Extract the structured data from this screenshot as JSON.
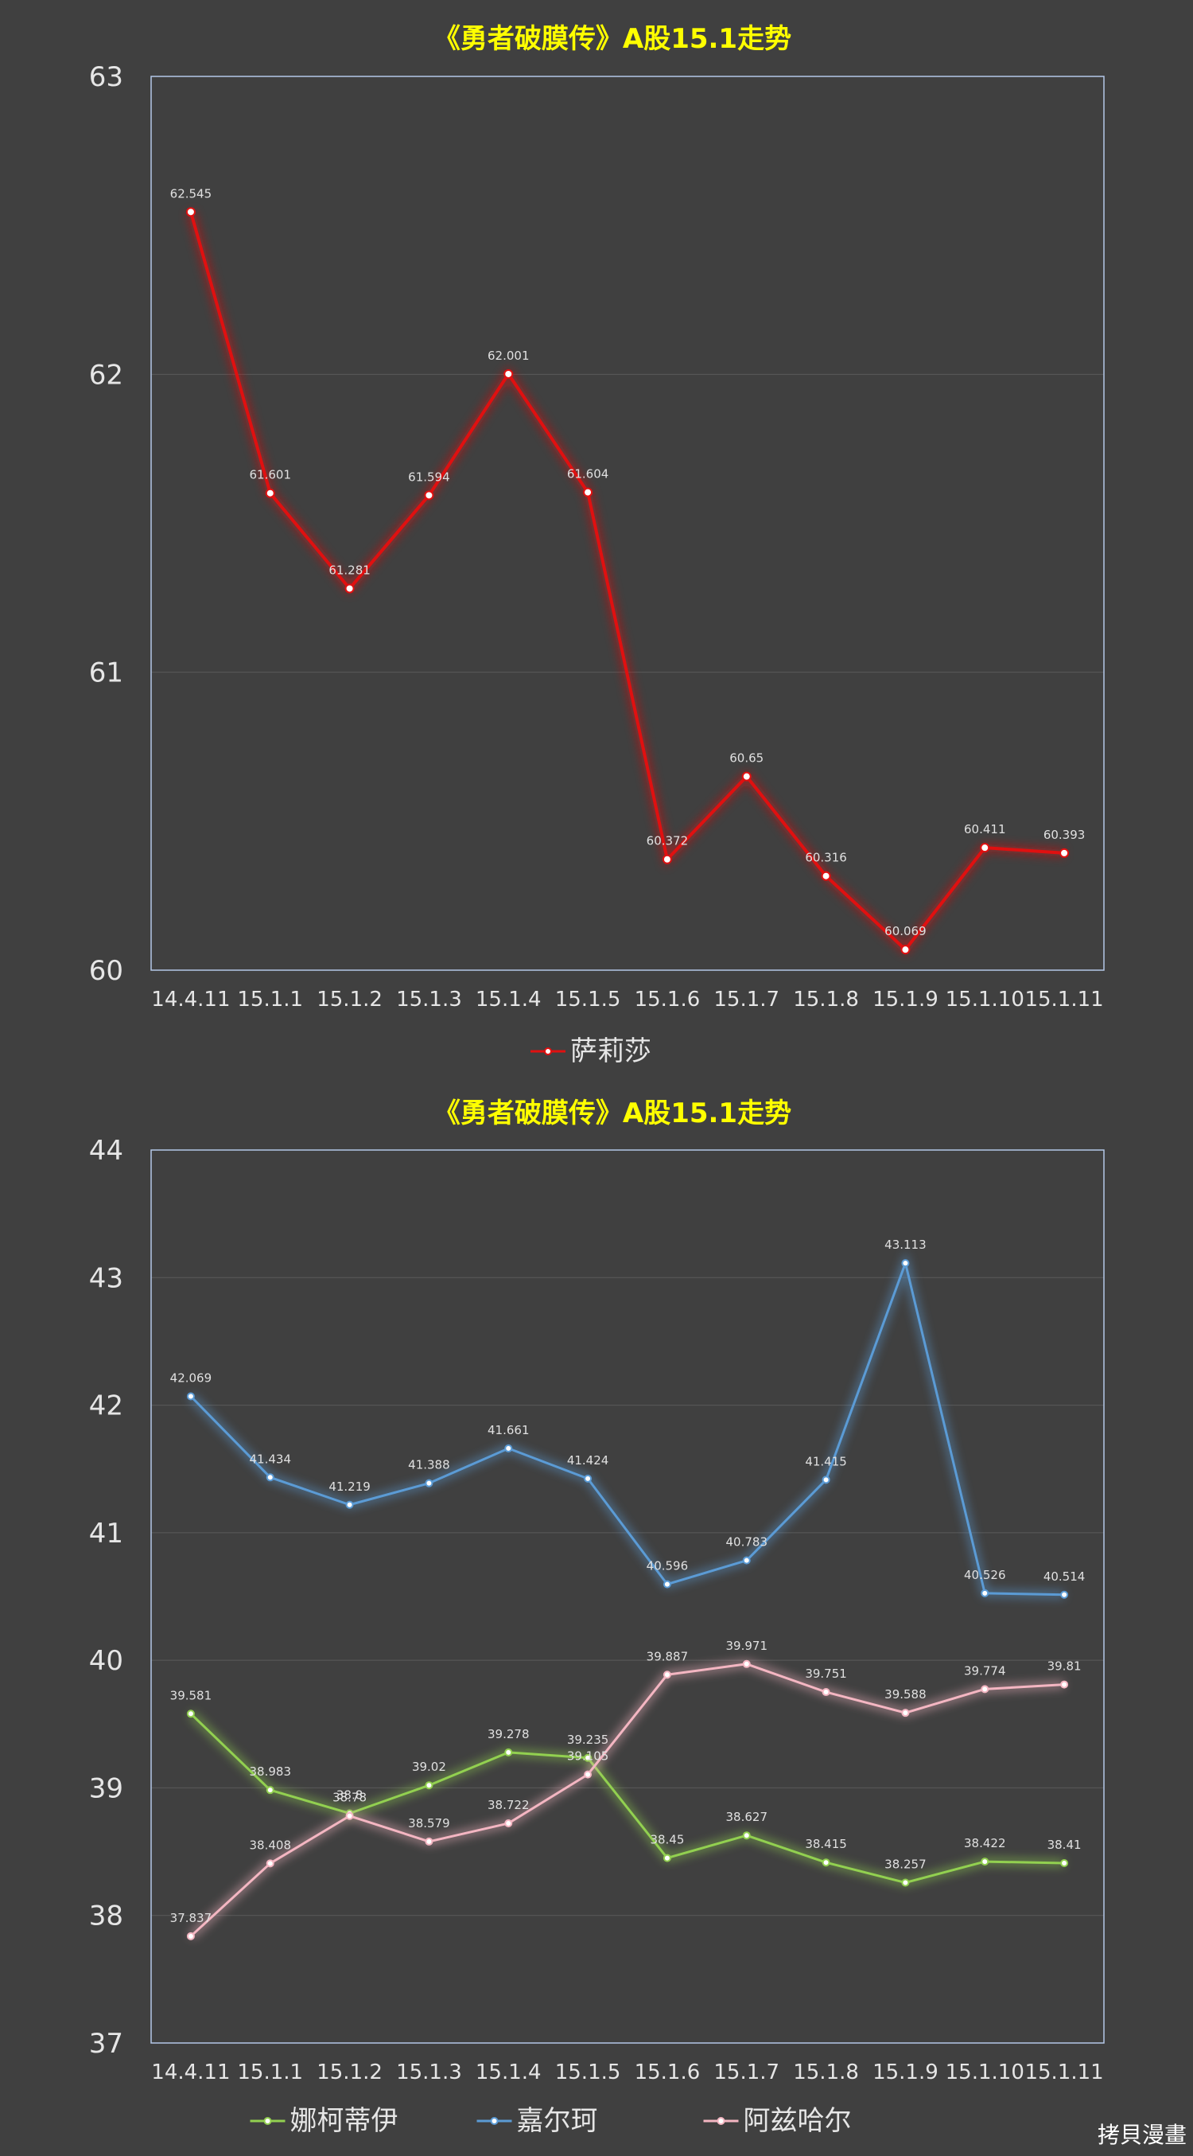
{
  "chart_data": [
    {
      "type": "line",
      "title": "《勇者破膜传》A股15.1走势",
      "categories": [
        "14.4.11",
        "15.1.1",
        "15.1.2",
        "15.1.3",
        "15.1.4",
        "15.1.5",
        "15.1.6",
        "15.1.7",
        "15.1.8",
        "15.1.9",
        "15.1.10",
        "15.1.11"
      ],
      "ylim": [
        60,
        63
      ],
      "yticks": [
        "60",
        "61",
        "62",
        "63"
      ],
      "grid": true,
      "legend": "bottom",
      "series": [
        {
          "name": "萨莉莎",
          "color": "#e01010",
          "values": [
            62.545,
            61.601,
            61.281,
            61.594,
            62.001,
            61.604,
            60.372,
            60.65,
            60.316,
            60.069,
            60.411,
            60.393
          ],
          "labels": [
            "62.545",
            "61.601",
            "61.281",
            "61.594",
            "62.001",
            "61.604",
            "60.372",
            "60.65",
            "60.316",
            "60.069",
            "60.411",
            "60.393"
          ]
        }
      ]
    },
    {
      "type": "line",
      "title": "《勇者破膜传》A股15.1走势",
      "categories": [
        "14.4.11",
        "15.1.1",
        "15.1.2",
        "15.1.3",
        "15.1.4",
        "15.1.5",
        "15.1.6",
        "15.1.7",
        "15.1.8",
        "15.1.9",
        "15.1.10",
        "15.1.11"
      ],
      "ylim": [
        37,
        44
      ],
      "yticks": [
        "37",
        "38",
        "39",
        "40",
        "41",
        "42",
        "43",
        "44"
      ],
      "grid": true,
      "legend": "bottom",
      "series": [
        {
          "name": "娜柯蒂伊",
          "color": "#92d050",
          "values": [
            39.581,
            38.983,
            38.8,
            39.02,
            39.278,
            39.235,
            38.45,
            38.627,
            38.415,
            38.257,
            38.422,
            38.41
          ],
          "labels": [
            "39.581",
            "38.983",
            "38.8",
            "39.02",
            "39.278",
            "39.235",
            "38.45",
            "38.627",
            "38.415",
            "38.257",
            "38.422",
            "38.41"
          ]
        },
        {
          "name": "嘉尔珂",
          "color": "#5b9bd5",
          "values": [
            42.069,
            41.434,
            41.219,
            41.388,
            41.661,
            41.424,
            40.596,
            40.783,
            41.415,
            43.113,
            40.526,
            40.514
          ],
          "labels": [
            "42.069",
            "41.434",
            "41.219",
            "41.388",
            "41.661",
            "41.424",
            "40.596",
            "40.783",
            "41.415",
            "43.113",
            "40.526",
            "40.514"
          ]
        },
        {
          "name": "阿兹哈尔",
          "color": "#f4b6c2",
          "values": [
            37.837,
            38.408,
            38.78,
            38.579,
            38.722,
            39.105,
            39.887,
            39.971,
            39.751,
            39.588,
            39.774,
            39.81
          ],
          "labels": [
            "37.837",
            "38.408",
            "38.78",
            "38.579",
            "38.722",
            "39.105",
            "39.887",
            "39.971",
            "39.751",
            "39.588",
            "39.774",
            "39.81"
          ]
        }
      ]
    }
  ],
  "watermark": "拷貝漫畫"
}
